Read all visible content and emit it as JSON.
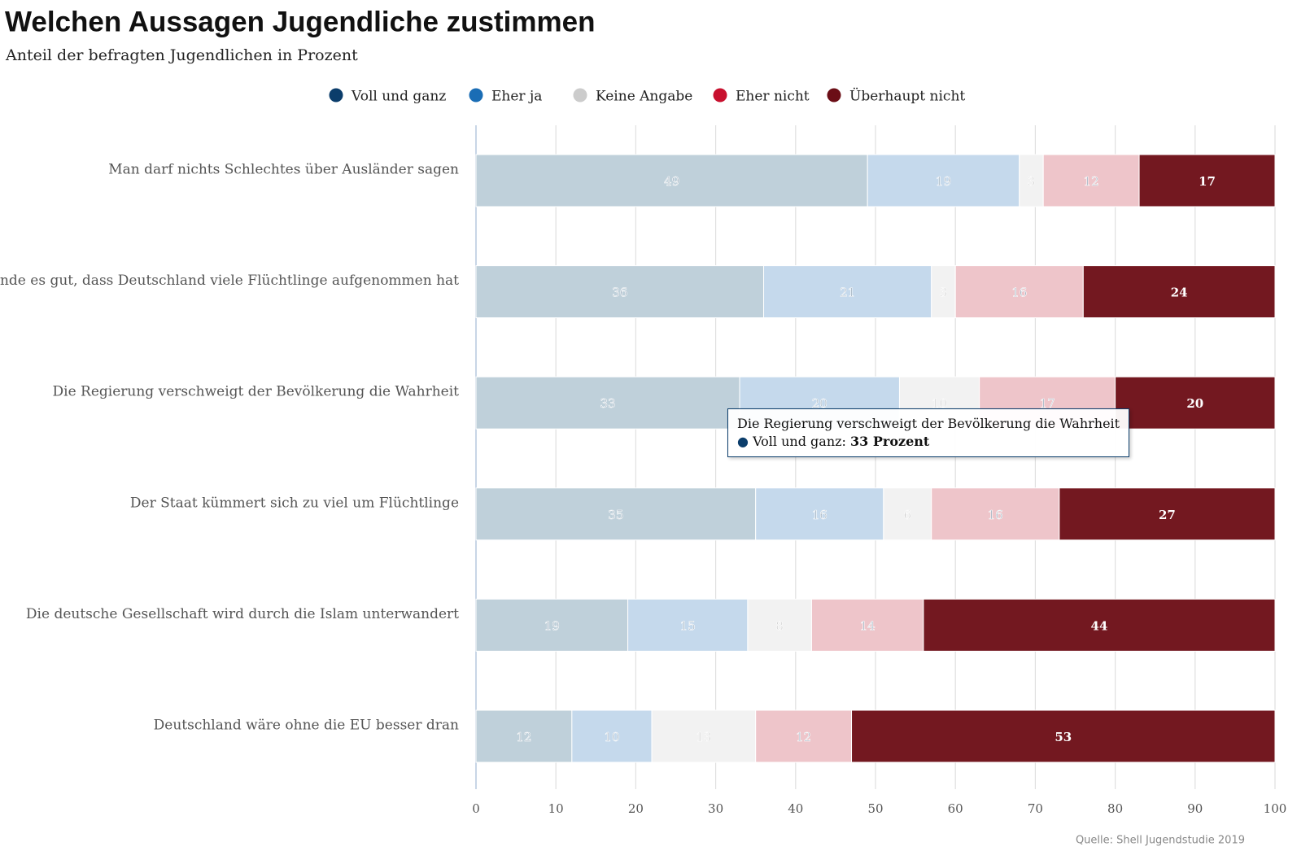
{
  "chart_data": {
    "type": "stacked_bar_horizontal",
    "title": "Welchen Aussagen Jugendliche zustimmen",
    "subtitle": "Anteil der befragten Jugendlichen in Prozent",
    "source": "Quelle: Shell Jugendstudie 2019",
    "categories": [
      "Man darf nichts Schlechtes über Ausländer sagen",
      "Ich finde es gut, dass Deutschland viele Flüchtlinge aufgenommen hat",
      "Die Regierung verschweigt der Bevölkerung die Wahrheit",
      "Der Staat kümmert sich zu viel um Flüchtlinge",
      "Die deutsche Gesellschaft wird durch die Islam unterwandert",
      "Deutschland wäre ohne die EU besser dran"
    ],
    "series": [
      {
        "name": "Voll und ganz",
        "color": "#0b3d6b",
        "bar_color": "#bfd0da",
        "values": [
          49,
          36,
          33,
          35,
          19,
          12
        ]
      },
      {
        "name": "Eher ja",
        "color": "#1a6db5",
        "bar_color": "#c5d9ec",
        "values": [
          19,
          21,
          20,
          16,
          15,
          10
        ]
      },
      {
        "name": "Keine Angabe",
        "color": "#cccccc",
        "bar_color": "#f2f2f2",
        "values": [
          3,
          3,
          10,
          6,
          8,
          13
        ]
      },
      {
        "name": "Eher nicht",
        "color": "#c8102e",
        "bar_color": "#eec5ca",
        "values": [
          12,
          16,
          17,
          16,
          14,
          12
        ]
      },
      {
        "name": "Überhaupt nicht",
        "color": "#6b0e16",
        "bar_color": "#731820",
        "values": [
          17,
          24,
          20,
          27,
          44,
          53
        ]
      }
    ],
    "xlim": [
      0,
      100
    ],
    "xticks": [
      0,
      10,
      20,
      30,
      40,
      50,
      60,
      70,
      80,
      90,
      100
    ],
    "grid": true,
    "legend": "top",
    "tooltip": {
      "title": "Die Regierung verschweigt der Bevölkerung die Wahrheit",
      "label": "Voll und ganz:",
      "value_label": "33 Prozent"
    }
  }
}
